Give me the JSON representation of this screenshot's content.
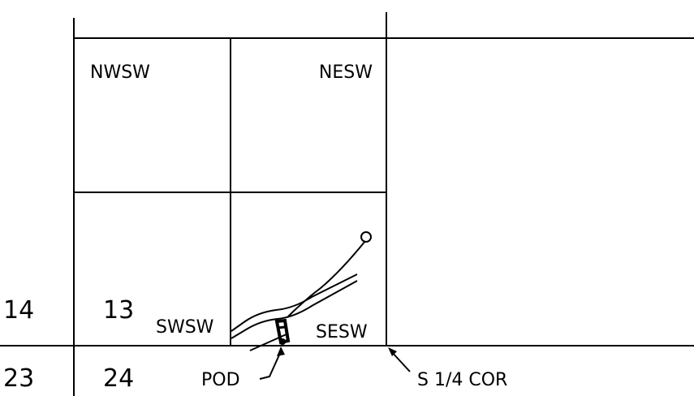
{
  "quarter_quarters": {
    "nwsw": "NWSW",
    "nesw": "NESW",
    "swsw": "SWSW",
    "sesw": "SESW"
  },
  "sections": {
    "s14": "14",
    "s13": "13",
    "s23": "23",
    "s24": "24"
  },
  "annotations": {
    "pod": "POD",
    "corner": "S 1/4 COR"
  }
}
